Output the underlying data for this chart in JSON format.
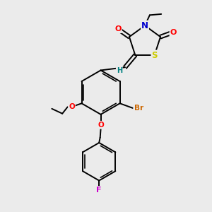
{
  "bg_color": "#ebebeb",
  "bond_color": "#000000",
  "atom_colors": {
    "O": "#ff0000",
    "N": "#0000cd",
    "S": "#cccc00",
    "Br": "#cc6600",
    "F": "#cc00cc",
    "H": "#008080",
    "C": "#000000"
  },
  "font_size": 7.5,
  "lw": 1.4
}
